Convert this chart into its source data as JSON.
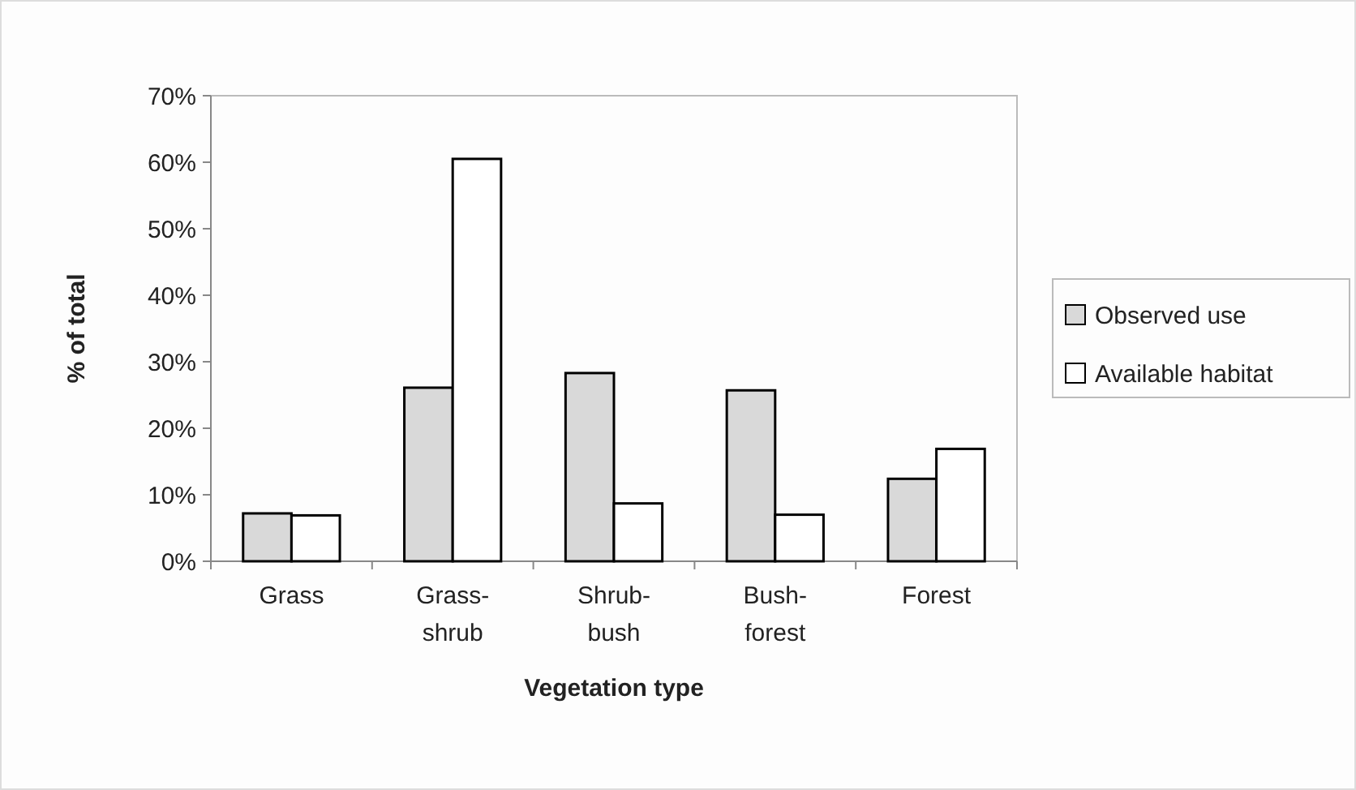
{
  "chart_data": {
    "type": "bar",
    "xlabel": "Vegetation type",
    "ylabel": "% of total",
    "categories": [
      "Grass",
      "Grass-shrub",
      "Shrub-bush",
      "Bush-forest",
      "Forest"
    ],
    "series": [
      {
        "name": "Observed use",
        "color": "#d9d9d9",
        "values": [
          7.2,
          26.1,
          28.3,
          25.7,
          12.4
        ]
      },
      {
        "name": "Available habitat",
        "color": "#ffffff",
        "values": [
          6.9,
          60.5,
          8.7,
          7.0,
          16.9
        ]
      }
    ],
    "ylim": [
      0,
      70
    ],
    "yticks": [
      {
        "value": 0,
        "label": "0%"
      },
      {
        "value": 10,
        "label": "10%"
      },
      {
        "value": 20,
        "label": "20%"
      },
      {
        "value": 30,
        "label": "30%"
      },
      {
        "value": 40,
        "label": "40%"
      },
      {
        "value": 50,
        "label": "50%"
      },
      {
        "value": 60,
        "label": "60%"
      },
      {
        "value": 70,
        "label": "70%"
      }
    ],
    "legend": "right",
    "grid": false
  }
}
